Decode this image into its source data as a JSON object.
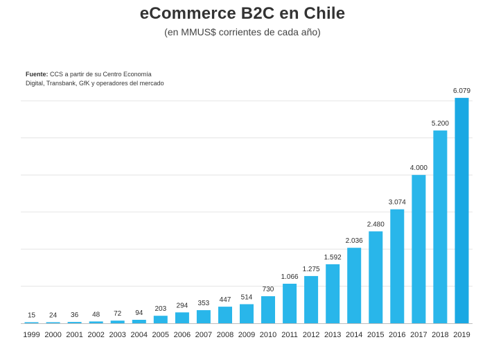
{
  "chart_data": {
    "type": "bar",
    "title": "eCommerce B2C en Chile",
    "subtitle": "(en MMUS$ corrientes de cada año)",
    "source_label": "Fuente:",
    "source_text": "CCS a partir de su Centro Economía",
    "source_line2": "Digital, Transbank, GfK y operadores del mercado",
    "xlabel": "",
    "ylabel": "",
    "ylim": [
      0,
      6100
    ],
    "grid": true,
    "categories": [
      "1999",
      "2000",
      "2001",
      "2002",
      "2003",
      "2004",
      "2005",
      "2006",
      "2007",
      "2008",
      "2009",
      "2010",
      "2011",
      "2012",
      "2013",
      "2014",
      "2015",
      "2016",
      "2017",
      "2018",
      "2019"
    ],
    "values": [
      15,
      24,
      36,
      48,
      72,
      94,
      203,
      294,
      353,
      447,
      514,
      730,
      1066,
      1275,
      1592,
      2036,
      2480,
      3074,
      4000,
      5200,
      6079
    ],
    "value_labels": [
      "15",
      "24",
      "36",
      "48",
      "72",
      "94",
      "203",
      "294",
      "353",
      "447",
      "514",
      "730",
      "1.066",
      "1.275",
      "1.592",
      "2.036",
      "2.480",
      "3.074",
      "4.000",
      "5.200",
      "6.079"
    ],
    "colors": {
      "bar": "#29b6ea",
      "bar_last": "#1aa8e3",
      "grid": "#e4e4e4",
      "text": "#2b2b2b"
    }
  }
}
